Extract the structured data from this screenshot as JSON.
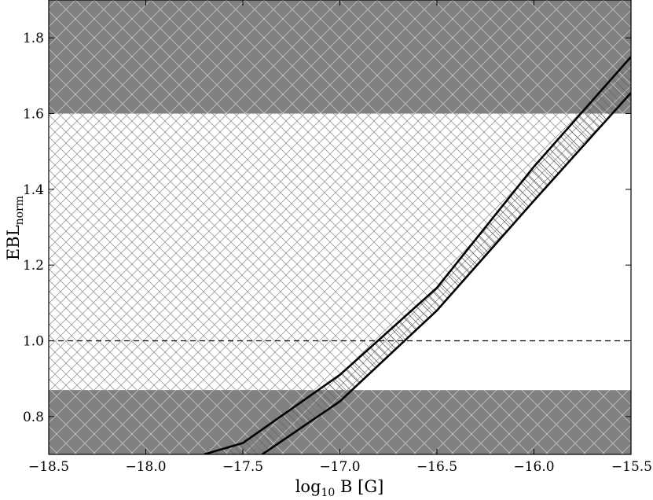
{
  "chart_data": {
    "type": "line",
    "xlabel": "log",
    "xlabel_sub": "10",
    "xlabel_rest": " B [G]",
    "ylabel": "EBL",
    "ylabel_sub": "norm",
    "xlim": [
      -18.5,
      -15.5
    ],
    "ylim": [
      0.7,
      1.9
    ],
    "x_ticks": [
      -18.5,
      -18.0,
      -17.5,
      -17.0,
      -16.5,
      -16.0,
      -15.5
    ],
    "x_tick_labels": [
      "−18.5",
      "−18.0",
      "−17.5",
      "−17.0",
      "−16.5",
      "−16.0",
      "−15.5"
    ],
    "y_ticks": [
      0.8,
      1.0,
      1.2,
      1.4,
      1.6,
      1.8
    ],
    "y_tick_labels": [
      "0.8",
      "1.0",
      "1.2",
      "1.4",
      "1.6",
      "1.8"
    ],
    "excluded_bands": [
      {
        "y0": 1.6,
        "y1": 1.9
      },
      {
        "y0": 0.7,
        "y1": 0.87
      }
    ],
    "allowed_band": {
      "y0": 0.87,
      "y1": 1.6
    },
    "reference_line": {
      "y": 1.0,
      "style": "dashed"
    },
    "series": [
      {
        "x": [
          -17.7,
          -17.5,
          -17.0,
          -16.5,
          -16.0,
          -15.5
        ],
        "y": [
          0.7,
          0.73,
          0.91,
          1.14,
          1.46,
          1.75
        ]
      },
      {
        "x": [
          -17.4,
          -17.0,
          -16.5,
          -16.0,
          -15.5
        ],
        "y": [
          0.7,
          0.84,
          1.08,
          1.37,
          1.655
        ]
      }
    ],
    "colors": {
      "band": "#808080",
      "band_hatch": "#b8b8b8",
      "hatch": "#999999",
      "line": "#000000"
    }
  }
}
